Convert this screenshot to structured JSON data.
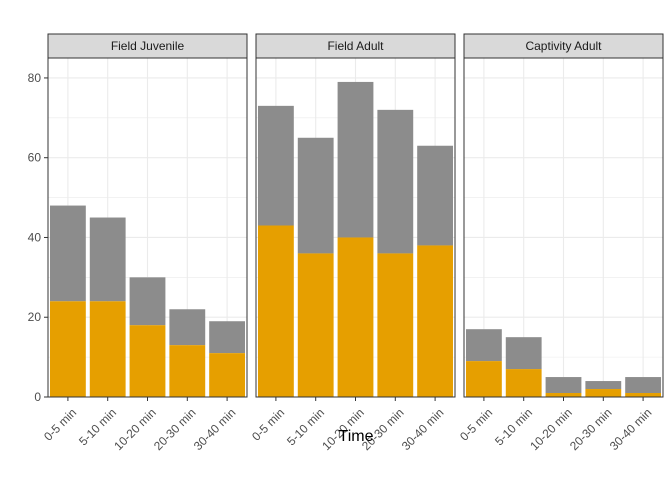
{
  "chart_data": {
    "type": "bar",
    "stacked": true,
    "categories": [
      "0-5 min",
      "5-10 min",
      "10-20 min",
      "20-30 min",
      "30-40 min"
    ],
    "xlabel": "Time",
    "ylabel": "",
    "ylim": [
      0,
      85
    ],
    "yticks": [
      0,
      20,
      40,
      60,
      80
    ],
    "grid": true,
    "colors": {
      "lower": "#E69F00",
      "upper": "#8C8C8C",
      "strip": "#D9D9D9"
    },
    "panels": [
      {
        "title": "Field Juvenile",
        "lower": [
          24,
          24,
          18,
          13,
          11
        ],
        "total": [
          48,
          45,
          30,
          22,
          19
        ]
      },
      {
        "title": "Field Adult",
        "lower": [
          43,
          36,
          40,
          36,
          38
        ],
        "total": [
          73,
          65,
          79,
          72,
          63
        ]
      },
      {
        "title": "Captivity Adult",
        "lower": [
          9,
          7,
          1,
          2,
          1
        ],
        "total": [
          17,
          15,
          5,
          4,
          5
        ]
      }
    ]
  }
}
